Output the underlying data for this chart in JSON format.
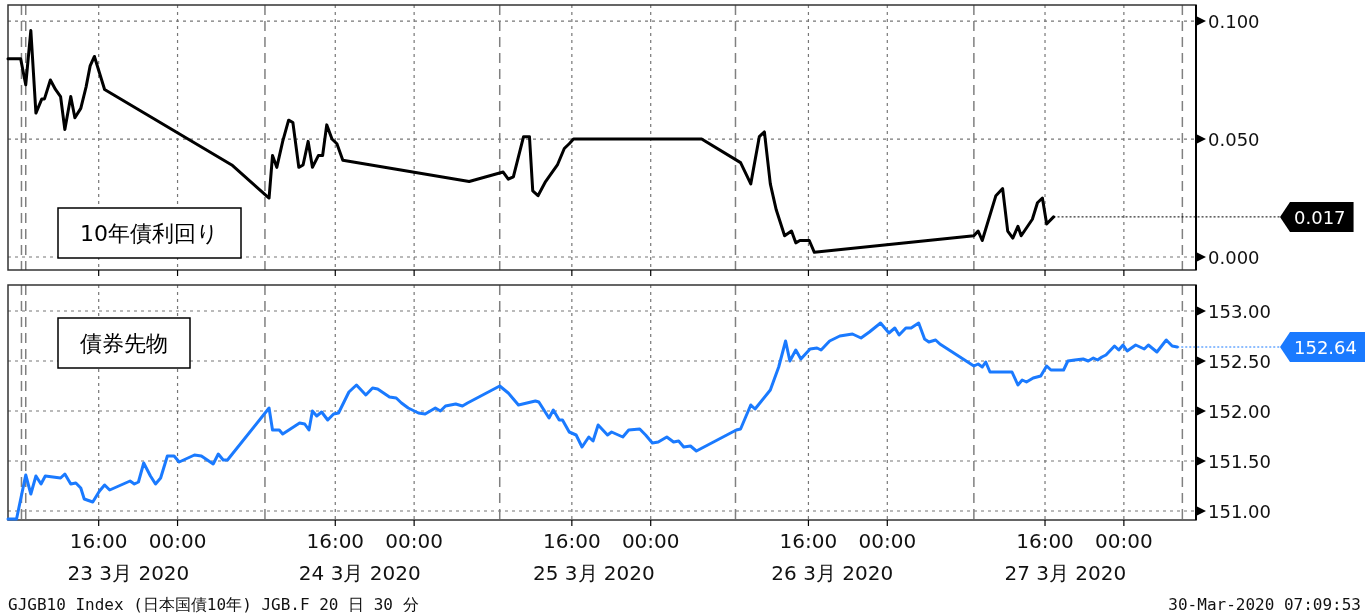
{
  "chart_data": [
    {
      "type": "line",
      "title": "10年債利回り",
      "grid": true,
      "tick_labels": "y",
      "xlim": [
        "2020-03-23T06:48",
        "2020-03-28T07:19"
      ],
      "ylim": [
        -0.0055,
        0.1068
      ],
      "xticks": [
        {
          "value": "2020-03-23T16:00",
          "label": null
        },
        {
          "value": "2020-03-24T00:00",
          "label": null
        },
        {
          "value": "2020-03-24T16:00",
          "label": null
        },
        {
          "value": "2020-03-25T00:00",
          "label": null
        },
        {
          "value": "2020-03-25T16:00",
          "label": null
        },
        {
          "value": "2020-03-26T00:00",
          "label": null
        },
        {
          "value": "2020-03-26T16:00",
          "label": null
        },
        {
          "value": "2020-03-27T00:00",
          "label": null
        },
        {
          "value": "2020-03-27T16:00",
          "label": null
        },
        {
          "value": "2020-03-28T00:00",
          "label": null
        }
      ],
      "yticks": [
        {
          "value": 0,
          "label": "0.000"
        },
        {
          "value": 0.05,
          "label": "0.050"
        },
        {
          "value": 0.1,
          "label": "0.100"
        }
      ],
      "ref_lines": [
        {
          "axis": "x",
          "value": "2020-03-23T08:10",
          "line_style": "dashed",
          "color": "#808080"
        },
        {
          "axis": "x",
          "value": "2020-03-23T08:36",
          "line_style": "dashed",
          "color": "#808080"
        },
        {
          "axis": "x",
          "value": "2020-03-24T08:52",
          "line_style": "dashed",
          "color": "#808080"
        },
        {
          "axis": "x",
          "value": "2020-03-25T08:41",
          "line_style": "dashed",
          "color": "#808080"
        },
        {
          "axis": "x",
          "value": "2020-03-26T08:36",
          "line_style": "dashed",
          "color": "#808080"
        },
        {
          "axis": "x",
          "value": "2020-03-27T08:47",
          "line_style": "dashed",
          "color": "#808080"
        },
        {
          "axis": "x",
          "value": "2020-03-28T05:56",
          "line_style": "dashed",
          "color": "#808080"
        }
      ],
      "annotations": [
        {
          "text": "0.017",
          "x": "2020-03-27T16:52",
          "y": 0.017
        }
      ],
      "series": [
        {
          "color": "#000000",
          "x": [
            "2020-03-23T06:48",
            "2020-03-23T08:05",
            "2020-03-23T08:36",
            "2020-03-23T09:07",
            "2020-03-23T09:38",
            "2020-03-23T10:14",
            "2020-03-23T10:30",
            "2020-03-23T11:06",
            "2020-03-23T11:37",
            "2020-03-23T12:08",
            "2020-03-23T12:34",
            "2020-03-23T13:10",
            "2020-03-23T13:35",
            "2020-03-23T14:11",
            "2020-03-23T14:43",
            "2020-03-23T15:08",
            "2020-03-23T15:34",
            "2020-03-23T16:05",
            "2020-03-23T16:36",
            "2020-03-24T05:30",
            "2020-03-24T09:17",
            "2020-03-24T09:38",
            "2020-03-24T10:04",
            "2020-03-24T10:40",
            "2020-03-24T11:16",
            "2020-03-24T11:42",
            "2020-03-24T12:18",
            "2020-03-24T12:44",
            "2020-03-24T13:15",
            "2020-03-24T13:41",
            "2020-03-24T14:17",
            "2020-03-24T14:43",
            "2020-03-24T15:08",
            "2020-03-24T15:40",
            "2020-03-24T16:10",
            "2020-03-24T16:46",
            "2020-03-25T05:35",
            "2020-03-25T09:02",
            "2020-03-25T09:33",
            "2020-03-25T10:04",
            "2020-03-25T11:06",
            "2020-03-25T11:42",
            "2020-03-25T12:02",
            "2020-03-25T12:34",
            "2020-03-25T13:20",
            "2020-03-25T13:51",
            "2020-03-25T14:32",
            "2020-03-25T15:14",
            "2020-03-25T15:44",
            "2020-03-25T16:10",
            "2020-03-26T05:10",
            "2020-03-26T09:07",
            "2020-03-26T10:09",
            "2020-03-26T11:01",
            "2020-03-26T11:32",
            "2020-03-26T12:08",
            "2020-03-26T12:44",
            "2020-03-26T13:35",
            "2020-03-26T14:17",
            "2020-03-26T14:43",
            "2020-03-26T15:08",
            "2020-03-26T16:05",
            "2020-03-26T16:36",
            "2020-03-27T08:47",
            "2020-03-27T09:13",
            "2020-03-27T09:38",
            "2020-03-27T11:01",
            "2020-03-27T11:42",
            "2020-03-27T12:13",
            "2020-03-27T12:44",
            "2020-03-27T13:15",
            "2020-03-27T13:35",
            "2020-03-27T14:43",
            "2020-03-27T15:14",
            "2020-03-27T15:44",
            "2020-03-27T16:10",
            "2020-03-27T16:52"
          ],
          "values": [
            0.084,
            0.084,
            0.073,
            0.096,
            0.061,
            0.067,
            0.067,
            0.075,
            0.071,
            0.068,
            0.054,
            0.068,
            0.059,
            0.063,
            0.072,
            0.081,
            0.085,
            0.078,
            0.071,
            0.039,
            0.025,
            0.043,
            0.038,
            0.049,
            0.058,
            0.057,
            0.038,
            0.039,
            0.049,
            0.038,
            0.043,
            0.043,
            0.056,
            0.05,
            0.048,
            0.041,
            0.032,
            0.036,
            0.033,
            0.034,
            0.051,
            0.051,
            0.028,
            0.026,
            0.032,
            0.035,
            0.039,
            0.046,
            0.048,
            0.05,
            0.05,
            0.04,
            0.031,
            0.051,
            0.053,
            0.031,
            0.02,
            0.009,
            0.011,
            0.006,
            0.007,
            0.007,
            0.002,
            0.009,
            0.011,
            0.007,
            0.026,
            0.029,
            0.011,
            0.008,
            0.013,
            0.009,
            0.016,
            0.023,
            0.025,
            0.014,
            0.017
          ]
        }
      ]
    },
    {
      "type": "line",
      "title": "債券先物",
      "grid": true,
      "xlim": [
        "2020-03-23T06:48",
        "2020-03-28T07:19"
      ],
      "ylim": [
        150.91,
        153.26
      ],
      "xticks": [
        {
          "value": "2020-03-23T16:00",
          "label": "16:00"
        },
        {
          "value": "2020-03-24T00:00",
          "label": "00:00"
        },
        {
          "value": "2020-03-24T16:00",
          "label": "16:00"
        },
        {
          "value": "2020-03-25T00:00",
          "label": "00:00"
        },
        {
          "value": "2020-03-25T16:00",
          "label": "16:00"
        },
        {
          "value": "2020-03-26T00:00",
          "label": "00:00"
        },
        {
          "value": "2020-03-26T16:00",
          "label": "16:00"
        },
        {
          "value": "2020-03-27T00:00",
          "label": "00:00"
        },
        {
          "value": "2020-03-27T16:00",
          "label": "16:00"
        },
        {
          "value": "2020-03-28T00:00",
          "label": "00:00"
        }
      ],
      "x2lim": [
        "2020-03-23T06:48",
        "2020-03-28T07:19"
      ],
      "x2ticks": [
        {
          "value": "2020-03-23T19:01",
          "label": "23  3月 2020"
        },
        {
          "value": "2020-03-24T18:29",
          "label": "24 3月 2020"
        },
        {
          "value": "2020-03-25T18:14",
          "label": "25 3月 2020"
        },
        {
          "value": "2020-03-26T18:25",
          "label": "26 3月 2020"
        },
        {
          "value": "2020-03-27T18:04",
          "label": "27 3月 2020"
        }
      ],
      "yticks": [
        {
          "value": 151,
          "label": "151.00"
        },
        {
          "value": 151.5,
          "label": "151.50"
        },
        {
          "value": 152,
          "label": "152.00"
        },
        {
          "value": 152.5,
          "label": "152.50"
        },
        {
          "value": 153,
          "label": "153.00"
        }
      ],
      "ref_lines": [
        {
          "axis": "x",
          "value": "2020-03-23T08:10",
          "line_style": "dashed",
          "color": "#808080"
        },
        {
          "axis": "x",
          "value": "2020-03-23T08:36",
          "line_style": "dashed",
          "color": "#808080"
        },
        {
          "axis": "x",
          "value": "2020-03-24T08:52",
          "line_style": "dashed",
          "color": "#808080"
        },
        {
          "axis": "x",
          "value": "2020-03-25T08:41",
          "line_style": "dashed",
          "color": "#808080"
        },
        {
          "axis": "x",
          "value": "2020-03-26T08:36",
          "line_style": "dashed",
          "color": "#808080"
        },
        {
          "axis": "x",
          "value": "2020-03-27T08:47",
          "line_style": "dashed",
          "color": "#808080"
        },
        {
          "axis": "x",
          "value": "2020-03-28T05:56",
          "line_style": "dashed",
          "color": "#808080"
        }
      ],
      "annotations": [
        {
          "text": "152.64",
          "x": "2020-03-28T05:25",
          "y": 152.64
        },
        "GJGB10 Index (日本国債10年) JGB.F 20 日 30 分",
        "30-Mar-2020 07:09:53"
      ],
      "series": [
        {
          "color": "#1a7aff",
          "x": [
            "2020-03-23T06:48",
            "2020-03-23T07:40",
            "2020-03-23T08:36",
            "2020-03-23T09:07",
            "2020-03-23T09:38",
            "2020-03-23T10:09",
            "2020-03-23T10:35",
            "2020-03-23T12:08",
            "2020-03-23T12:34",
            "2020-03-23T13:10",
            "2020-03-23T13:41",
            "2020-03-23T14:11",
            "2020-03-23T14:32",
            "2020-03-23T15:24",
            "2020-03-23T16:05",
            "2020-03-23T16:36",
            "2020-03-23T17:07",
            "2020-03-23T19:11",
            "2020-03-23T19:37",
            "2020-03-23T20:02",
            "2020-03-23T20:34",
            "2020-03-23T21:15",
            "2020-03-23T21:46",
            "2020-03-23T22:17",
            "2020-03-23T22:58",
            "2020-03-23T23:39",
            "2020-03-24T00:10",
            "2020-03-24T01:43",
            "2020-03-24T02:25",
            "2020-03-24T03:37",
            "2020-03-24T04:08",
            "2020-03-24T04:38",
            "2020-03-24T05:04",
            "2020-03-24T09:17",
            "2020-03-24T09:38",
            "2020-03-24T10:19",
            "2020-03-24T10:40",
            "2020-03-24T12:23",
            "2020-03-24T12:54",
            "2020-03-24T13:20",
            "2020-03-24T13:41",
            "2020-03-24T14:07",
            "2020-03-24T14:37",
            "2020-03-24T15:14",
            "2020-03-24T15:50",
            "2020-03-24T16:20",
            "2020-03-24T17:23",
            "2020-03-24T18:09",
            "2020-03-24T19:06",
            "2020-03-24T19:47",
            "2020-03-24T20:18",
            "2020-03-24T21:30",
            "2020-03-24T22:11",
            "2020-03-24T22:43",
            "2020-03-24T23:24",
            "2020-03-25T00:26",
            "2020-03-25T01:07",
            "2020-03-25T02:09",
            "2020-03-25T02:40",
            "2020-03-25T03:11",
            "2020-03-25T04:13",
            "2020-03-25T04:54",
            "2020-03-25T05:25",
            "2020-03-25T08:41",
            "2020-03-25T09:33",
            "2020-03-25T10:35",
            "2020-03-25T12:18",
            "2020-03-25T12:39",
            "2020-03-25T13:41",
            "2020-03-25T14:07",
            "2020-03-25T14:43",
            "2020-03-25T15:03",
            "2020-03-25T15:44",
            "2020-03-25T16:26",
            "2020-03-25T17:02",
            "2020-03-25T17:43",
            "2020-03-25T18:09",
            "2020-03-25T18:40",
            "2020-03-25T19:37",
            "2020-03-25T20:02",
            "2020-03-25T21:10",
            "2020-03-25T21:46",
            "2020-03-25T22:53",
            "2020-03-25T23:29",
            "2020-03-26T00:10",
            "2020-03-26T00:46",
            "2020-03-26T01:38",
            "2020-03-26T02:19",
            "2020-03-26T02:50",
            "2020-03-26T03:21",
            "2020-03-26T04:02",
            "2020-03-26T04:38",
            "2020-03-26T08:41",
            "2020-03-26T09:07",
            "2020-03-26T10:09",
            "2020-03-26T10:35",
            "2020-03-26T12:08",
            "2020-03-26T12:59",
            "2020-03-26T13:41",
            "2020-03-26T14:07",
            "2020-03-26T14:43",
            "2020-03-26T15:14",
            "2020-03-26T16:10",
            "2020-03-26T16:52",
            "2020-03-26T17:17",
            "2020-03-26T18:09",
            "2020-03-26T19:11",
            "2020-03-26T20:28",
            "2020-03-26T21:20",
            "2020-03-26T22:11",
            "2020-03-26T23:19",
            "2020-03-27T00:10",
            "2020-03-27T00:46",
            "2020-03-27T01:12",
            "2020-03-27T01:53",
            "2020-03-27T02:25",
            "2020-03-27T03:11",
            "2020-03-27T03:47",
            "2020-03-27T04:13",
            "2020-03-27T04:54",
            "2020-03-27T05:20",
            "2020-03-27T08:47",
            "2020-03-27T09:13",
            "2020-03-27T09:38",
            "2020-03-27T09:59",
            "2020-03-27T10:25",
            "2020-03-27T12:39",
            "2020-03-27T13:15",
            "2020-03-27T13:41",
            "2020-03-27T14:07",
            "2020-03-27T14:48",
            "2020-03-27T15:34",
            "2020-03-27T16:10",
            "2020-03-27T16:36",
            "2020-03-27T17:53",
            "2020-03-27T18:19",
            "2020-03-27T19:01",
            "2020-03-27T19:52",
            "2020-03-27T20:23",
            "2020-03-27T20:54",
            "2020-03-27T21:20",
            "2020-03-27T21:46",
            "2020-03-27T22:11",
            "2020-03-27T23:03",
            "2020-03-27T23:29",
            "2020-03-27T23:55",
            "2020-03-28T00:20",
            "2020-03-28T01:12",
            "2020-03-28T02:04",
            "2020-03-28T02:29",
            "2020-03-28T03:21",
            "2020-03-28T04:18",
            "2020-03-28T04:54",
            "2020-03-28T05:25"
          ],
          "values": [
            150.92,
            150.92,
            151.36,
            151.17,
            151.35,
            151.27,
            151.35,
            151.33,
            151.37,
            151.27,
            151.28,
            151.23,
            151.12,
            151.09,
            151.2,
            151.26,
            151.21,
            151.3,
            151.27,
            151.29,
            151.48,
            151.35,
            151.27,
            151.33,
            151.55,
            151.55,
            151.49,
            151.56,
            151.55,
            151.47,
            151.57,
            151.51,
            151.51,
            152.03,
            151.81,
            151.81,
            151.77,
            151.88,
            151.87,
            151.81,
            152.0,
            151.95,
            151.99,
            151.91,
            151.97,
            151.98,
            152.19,
            152.26,
            152.16,
            152.23,
            152.22,
            152.14,
            152.13,
            152.08,
            152.03,
            151.98,
            151.97,
            152.03,
            152.0,
            152.05,
            152.07,
            152.05,
            152.08,
            152.25,
            152.18,
            152.06,
            152.1,
            152.09,
            151.93,
            152.01,
            151.91,
            151.91,
            151.79,
            151.76,
            151.64,
            151.74,
            151.7,
            151.86,
            151.76,
            151.79,
            151.74,
            151.81,
            151.82,
            151.76,
            151.68,
            151.69,
            151.74,
            151.69,
            151.7,
            151.64,
            151.65,
            151.6,
            151.81,
            151.82,
            152.06,
            152.02,
            152.21,
            152.44,
            152.7,
            152.5,
            152.61,
            152.52,
            152.62,
            152.63,
            152.61,
            152.7,
            152.75,
            152.77,
            152.73,
            152.79,
            152.88,
            152.78,
            152.83,
            152.76,
            152.83,
            152.83,
            152.88,
            152.72,
            152.69,
            152.71,
            152.67,
            152.45,
            152.47,
            152.44,
            152.49,
            152.39,
            152.39,
            152.26,
            152.31,
            152.29,
            152.33,
            152.35,
            152.45,
            152.41,
            152.41,
            152.5,
            152.51,
            152.52,
            152.5,
            152.53,
            152.51,
            152.54,
            152.56,
            152.65,
            152.61,
            152.66,
            152.6,
            152.66,
            152.62,
            152.66,
            152.59,
            152.71,
            152.65,
            152.64
          ]
        }
      ]
    }
  ]
}
